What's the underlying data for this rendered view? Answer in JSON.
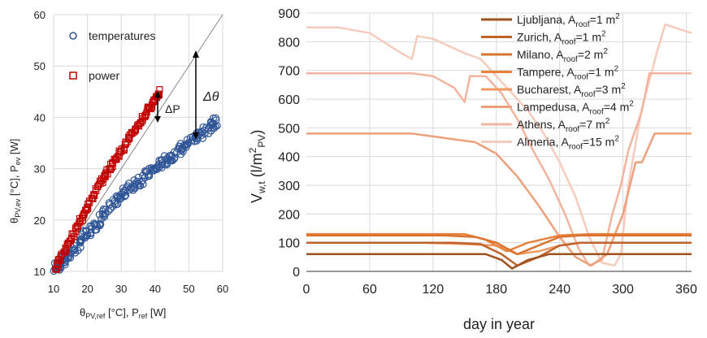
{
  "chart_data": [
    {
      "type": "scatter",
      "title": "",
      "xlabel": "θPV,ref [°C], Pref [W]",
      "ylabel": "θPV,ev [°C], Pev [W]",
      "xlim": [
        10,
        60
      ],
      "ylim": [
        10,
        60
      ],
      "xticks": [
        "10",
        "20",
        "30",
        "40",
        "50",
        "60"
      ],
      "yticks": [
        "10",
        "20",
        "30",
        "40",
        "50",
        "60"
      ],
      "grid": true,
      "legend_position": "top-left",
      "series": [
        {
          "name": "temperatures",
          "marker": "circle",
          "color": "#2f5597",
          "x": [
            10.5,
            12,
            13.5,
            15,
            17,
            19,
            21,
            23,
            25,
            27,
            29,
            31,
            33,
            35,
            37,
            39,
            41,
            43,
            45,
            47,
            49,
            51,
            53,
            55,
            57,
            58.5
          ],
          "y": [
            10.5,
            11.5,
            12.5,
            13.5,
            15,
            16.5,
            18,
            19.5,
            21,
            22.5,
            24,
            25.5,
            26.5,
            27.5,
            28.5,
            29.5,
            30.5,
            31.5,
            32.5,
            33.5,
            34.5,
            35.5,
            36.5,
            37.5,
            38.5,
            39
          ]
        },
        {
          "name": "power",
          "marker": "square",
          "color": "#c00000",
          "x": [
            10.5,
            12,
            14,
            16,
            18,
            20,
            22,
            24,
            26,
            28,
            30,
            32,
            34,
            36,
            38,
            40,
            41.5
          ],
          "y": [
            10.5,
            12.5,
            15,
            17.5,
            20,
            22.5,
            25,
            27.5,
            29.5,
            31.5,
            33.5,
            35.5,
            37.5,
            39.5,
            41.5,
            43.5,
            45
          ]
        }
      ],
      "annotations": [
        "ΔP",
        "Δθ"
      ]
    },
    {
      "type": "line",
      "title": "",
      "xlabel": "day in year",
      "ylabel": "Vw,t (l/m2PV)",
      "xlim": [
        0,
        365
      ],
      "ylim": [
        0,
        900
      ],
      "xticks": [
        "0",
        "60",
        "120",
        "180",
        "240",
        "300",
        "360"
      ],
      "yticks": [
        "0",
        "100",
        "200",
        "300",
        "400",
        "500",
        "600",
        "700",
        "800",
        "900"
      ],
      "grid": true,
      "legend_position": "top-right",
      "series": [
        {
          "name": "Ljubljana",
          "area": "1",
          "color": "#a0521e",
          "x": [
            0,
            150,
            170,
            185,
            195,
            210,
            230,
            250,
            365
          ],
          "y": [
            60,
            60,
            60,
            40,
            10,
            40,
            60,
            60,
            60
          ]
        },
        {
          "name": "Zurich",
          "area": "1",
          "color": "#c0622a",
          "x": [
            0,
            140,
            165,
            185,
            200,
            220,
            240,
            260,
            365
          ],
          "y": [
            100,
            100,
            95,
            60,
            20,
            50,
            90,
            100,
            100
          ]
        },
        {
          "name": "Milano",
          "area": "2",
          "color": "#d9732f",
          "x": [
            0,
            130,
            160,
            180,
            200,
            220,
            240,
            260,
            365
          ],
          "y": [
            125,
            125,
            120,
            100,
            60,
            90,
            120,
            125,
            125
          ]
        },
        {
          "name": "Tampere",
          "area": "1",
          "color": "#e8823a",
          "x": [
            0,
            130,
            150,
            170,
            190,
            210,
            240,
            270,
            365
          ],
          "y": [
            130,
            130,
            130,
            110,
            70,
            100,
            125,
            130,
            130
          ]
        },
        {
          "name": "Bucharest",
          "area": "3",
          "color": "#ee9a62",
          "x": [
            0,
            110,
            150,
            180,
            200,
            220,
            240,
            260,
            280,
            365
          ],
          "y": [
            100,
            100,
            95,
            90,
            60,
            70,
            90,
            100,
            100,
            100
          ]
        },
        {
          "name": "Lampedusa",
          "area": "4",
          "color": "#eda07c",
          "x": [
            0,
            60,
            100,
            120,
            140,
            160,
            180,
            200,
            220,
            240,
            255,
            270,
            285,
            300,
            312,
            318,
            330,
            365
          ],
          "y": [
            480,
            480,
            480,
            470,
            460,
            450,
            410,
            330,
            230,
            120,
            50,
            20,
            60,
            200,
            380,
            380,
            480,
            480
          ]
        },
        {
          "name": "Athens",
          "area": "7",
          "color": "#f2b49e",
          "x": [
            0,
            60,
            100,
            120,
            140,
            150,
            155,
            170,
            185,
            200,
            215,
            230,
            245,
            258,
            268,
            280,
            290,
            298,
            305,
            318,
            325,
            330,
            365
          ],
          "y": [
            690,
            690,
            690,
            680,
            640,
            590,
            680,
            680,
            620,
            530,
            420,
            320,
            200,
            80,
            20,
            40,
            200,
            300,
            420,
            560,
            690,
            690,
            690
          ]
        },
        {
          "name": "Almeria",
          "area": "15",
          "color": "#f6cbbc",
          "x": [
            0,
            30,
            60,
            90,
            100,
            105,
            120,
            150,
            165,
            180,
            195,
            210,
            225,
            240,
            255,
            268,
            280,
            292,
            298,
            305,
            318,
            332,
            340,
            365
          ],
          "y": [
            850,
            850,
            830,
            760,
            740,
            820,
            810,
            760,
            740,
            680,
            620,
            560,
            480,
            380,
            260,
            120,
            30,
            20,
            60,
            300,
            570,
            760,
            860,
            830
          ]
        }
      ]
    }
  ],
  "legend_labels": {
    "left_temperatures": "temperatures",
    "left_power": "power",
    "delta_p": "ΔP",
    "delta_theta": "Δθ"
  },
  "axis_text": {
    "left_ylabel_theta": "θ",
    "left_ylabel_sub": "PV,ev",
    "left_ylabel_rest": " [°C], P",
    "left_ylabel_sub2": "ev",
    "left_ylabel_end": " [W]",
    "left_xlabel_theta": "θ",
    "left_xlabel_sub": "PV,ref",
    "left_xlabel_rest": " [°C], P",
    "left_xlabel_sub2": "ref",
    "left_xlabel_end": " [W]",
    "right_ylabel_v": "V",
    "right_ylabel_sub": "w,t",
    "right_ylabel_rest": " (l/m",
    "right_ylabel_sup": "2",
    "right_ylabel_sub2": "PV",
    "right_ylabel_end": ")",
    "right_xlabel": "day in year",
    "legend_city_suffix": ", A",
    "legend_sub": "roof",
    "legend_eq": "=",
    "legend_unit": " m",
    "legend_sup": "2"
  }
}
